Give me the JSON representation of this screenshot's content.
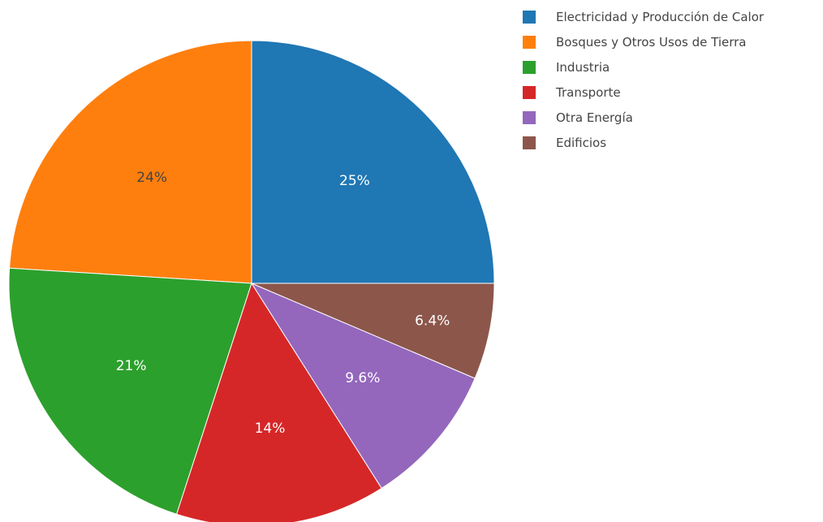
{
  "chart_data": {
    "type": "pie",
    "slices": [
      {
        "label": "Electricidad y Producción de Calor",
        "value": 25,
        "display": "25%",
        "color": "#1f77b4",
        "label_color": "#ffffff"
      },
      {
        "label": "Bosques y Otros Usos de Tierra",
        "value": 24,
        "display": "24%",
        "color": "#ff7f0e",
        "label_color": "#444444"
      },
      {
        "label": "Industria",
        "value": 21,
        "display": "21%",
        "color": "#2ca02c",
        "label_color": "#ffffff"
      },
      {
        "label": "Transporte",
        "value": 14,
        "display": "14%",
        "color": "#d62728",
        "label_color": "#ffffff"
      },
      {
        "label": "Otra Energía",
        "value": 9.6,
        "display": "9.6%",
        "color": "#9467bd",
        "label_color": "#ffffff"
      },
      {
        "label": "Edificios",
        "value": 6.4,
        "display": "6.4%",
        "color": "#8c564b",
        "label_color": "#ffffff"
      }
    ],
    "legend_position": "top-right",
    "direction": "counterclockwise",
    "start": "right"
  }
}
